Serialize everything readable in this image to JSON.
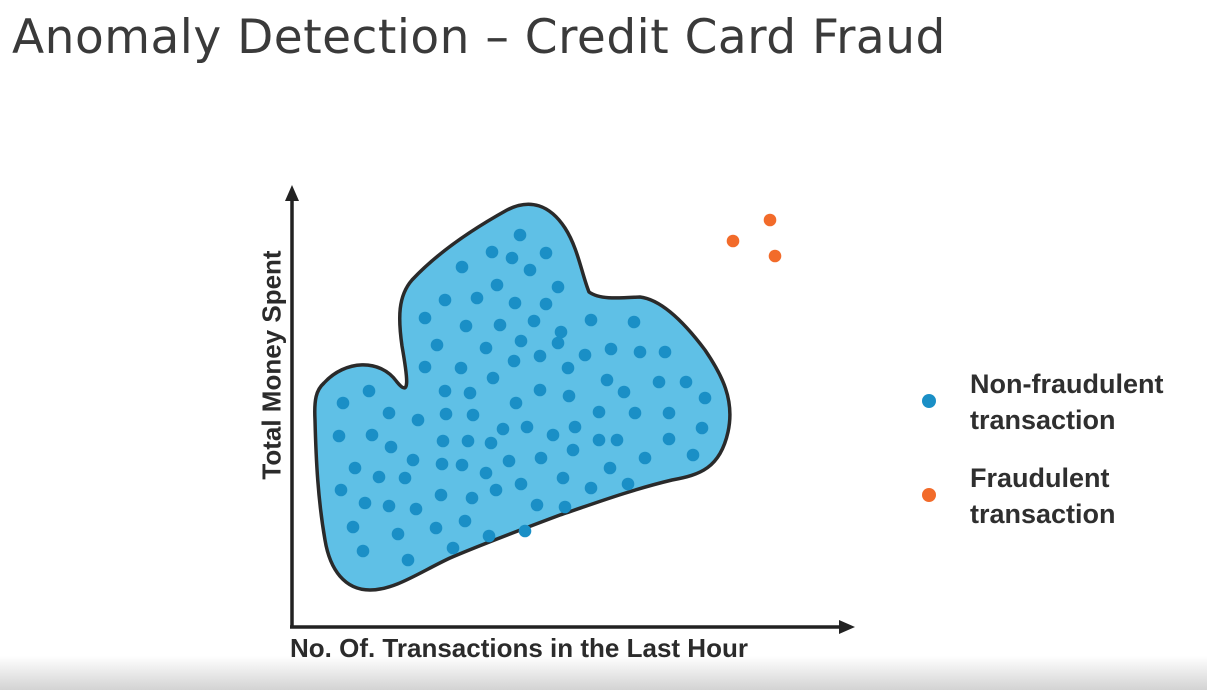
{
  "title": "Anomaly Detection – Credit Card Fraud",
  "axes": {
    "x_label": "No. Of. Transactions in the Last Hour",
    "y_label": "Total Money Spent"
  },
  "legend": [
    {
      "line1": "Non-fraudulent",
      "line2": "transaction",
      "color": "#1a8fc6",
      "icon": "blue-dot-icon"
    },
    {
      "line1": "Fraudulent",
      "line2": "transaction",
      "color": "#f26b2a",
      "icon": "orange-dot-icon"
    }
  ],
  "colors": {
    "cluster_fill": "#5fc0e6",
    "cluster_stroke": "#2a2a2a",
    "normal_point": "#1a8fc6",
    "fraud_point": "#f26b2a",
    "axis": "#222222"
  }
}
